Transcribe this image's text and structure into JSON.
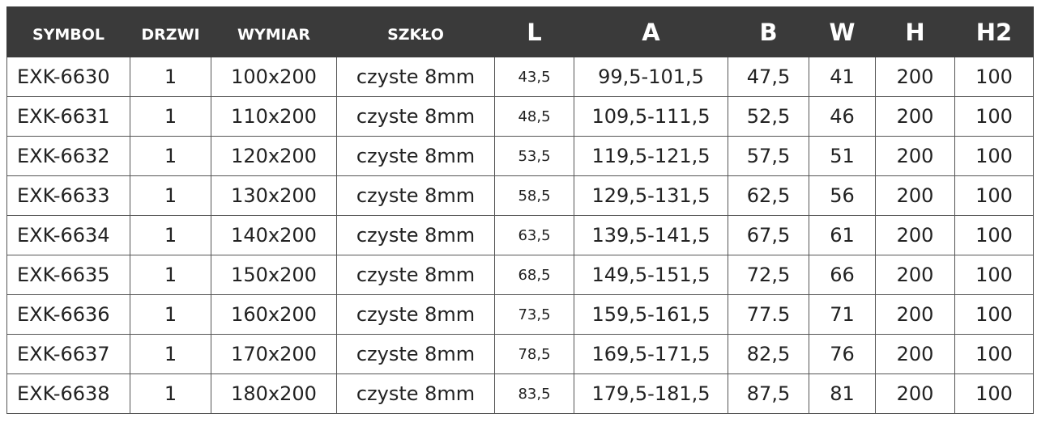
{
  "table": {
    "header": [
      "SYMBOL",
      "DRZWI",
      "WYMIAR",
      "SZKŁO",
      "L",
      "A",
      "B",
      "W",
      "H",
      "H2"
    ],
    "rows": [
      [
        "EXK-6630",
        "1",
        "100x200",
        "czyste 8mm",
        "43,5",
        "99,5-101,5",
        "47,5",
        "41",
        "200",
        "100"
      ],
      [
        "EXK-6631",
        "1",
        "110x200",
        "czyste 8mm",
        "48,5",
        "109,5-111,5",
        "52,5",
        "46",
        "200",
        "100"
      ],
      [
        "EXK-6632",
        "1",
        "120x200",
        "czyste 8mm",
        "53,5",
        "119,5-121,5",
        "57,5",
        "51",
        "200",
        "100"
      ],
      [
        "EXK-6633",
        "1",
        "130x200",
        "czyste 8mm",
        "58,5",
        "129,5-131,5",
        "62,5",
        "56",
        "200",
        "100"
      ],
      [
        "EXK-6634",
        "1",
        "140x200",
        "czyste 8mm",
        "63,5",
        "139,5-141,5",
        "67,5",
        "61",
        "200",
        "100"
      ],
      [
        "EXK-6635",
        "1",
        "150x200",
        "czyste 8mm",
        "68,5",
        "149,5-151,5",
        "72,5",
        "66",
        "200",
        "100"
      ],
      [
        "EXK-6636",
        "1",
        "160x200",
        "czyste 8mm",
        "73,5",
        "159,5-161,5",
        "77.5",
        "71",
        "200",
        "100"
      ],
      [
        "EXK-6637",
        "1",
        "170x200",
        "czyste 8mm",
        "78,5",
        "169,5-171,5",
        "82,5",
        "76",
        "200",
        "100"
      ],
      [
        "EXK-6638",
        "1",
        "180x200",
        "czyste 8mm",
        "83,5",
        "179,5-181,5",
        "87,5",
        "81",
        "200",
        "100"
      ]
    ]
  }
}
